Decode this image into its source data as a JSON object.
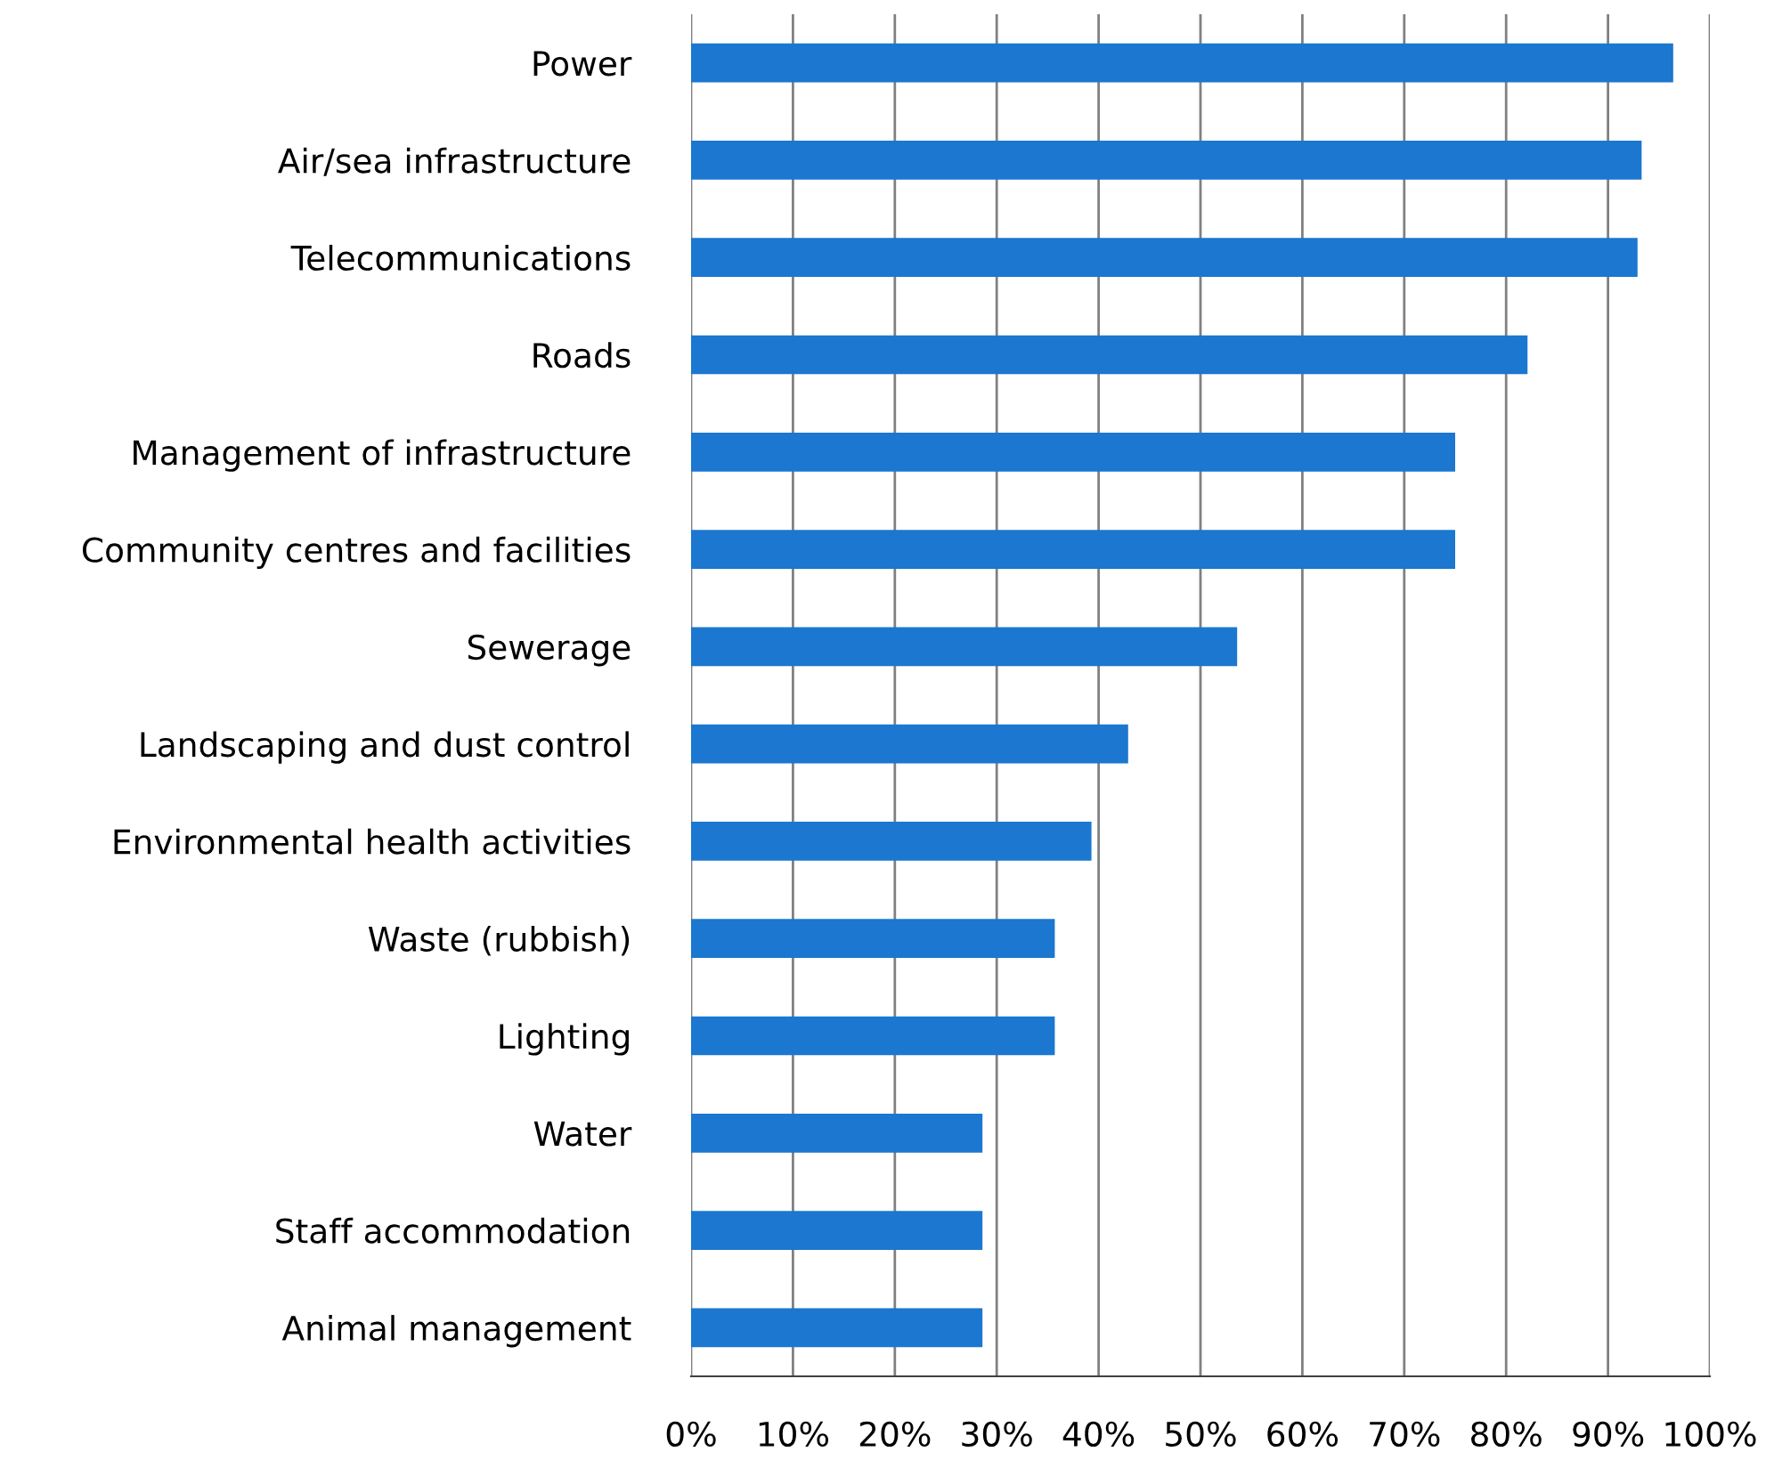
{
  "chart_data": {
    "type": "bar",
    "orientation": "horizontal",
    "categories": [
      "Power",
      "Air/sea infrastructure",
      "Telecommunications",
      "Roads",
      "Management of infrastructure",
      "Community centres and facilities",
      "Sewerage",
      "Landscaping and dust control",
      "Environmental health activities",
      "Waste (rubbish)",
      "Lighting",
      "Water",
      "Staff accommodation",
      "Animal management"
    ],
    "values": [
      96.4,
      93.3,
      92.9,
      82.1,
      75,
      75,
      53.6,
      42.9,
      39.3,
      35.7,
      35.7,
      28.6,
      28.6,
      28.6
    ],
    "color": "#1b77cf",
    "xlim": [
      0,
      100
    ],
    "xticks": [
      {
        "value": 0,
        "label": "0%"
      },
      {
        "value": 10,
        "label": "10%"
      },
      {
        "value": 20,
        "label": "20%"
      },
      {
        "value": 30,
        "label": "30%"
      },
      {
        "value": 40,
        "label": "40%"
      },
      {
        "value": 50,
        "label": "50%"
      },
      {
        "value": 60,
        "label": "60%"
      },
      {
        "value": 70,
        "label": "70%"
      },
      {
        "value": 80,
        "label": "80%"
      },
      {
        "value": 90,
        "label": "90%"
      },
      {
        "value": 100,
        "label": "100%"
      }
    ],
    "grid": "x",
    "legend": false
  }
}
